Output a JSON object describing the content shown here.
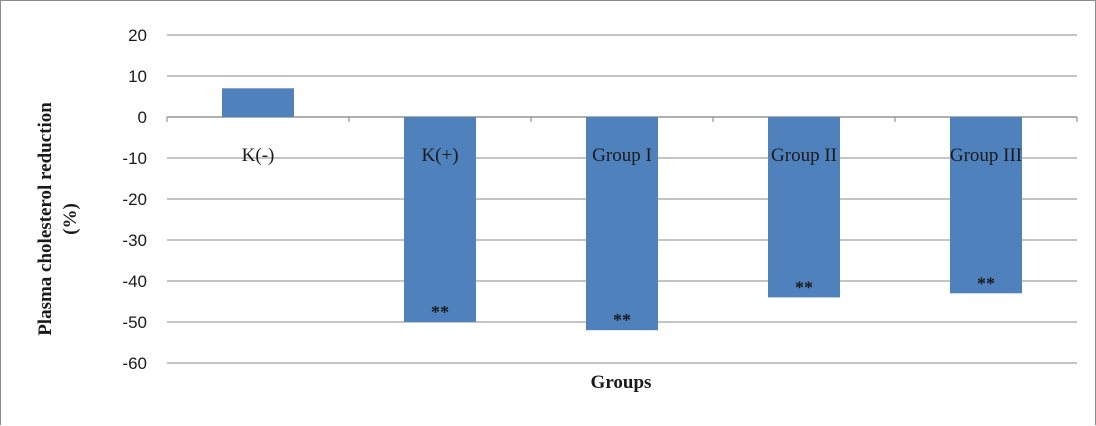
{
  "chart_data": {
    "type": "bar",
    "categories": [
      "K(-)",
      "K(+)",
      "Group I",
      "Group II",
      "Group III"
    ],
    "values": [
      7,
      -50,
      -52,
      -44,
      -43
    ],
    "annotations": [
      "",
      "**",
      "**",
      "**",
      "**"
    ],
    "ylim": [
      -60,
      20
    ],
    "yticks": [
      20,
      10,
      0,
      -10,
      -20,
      -30,
      -40,
      -50,
      -60
    ],
    "ytick_labels": [
      "20",
      "10",
      "0",
      "-10",
      "-20",
      "-30",
      "-40",
      "-50",
      "-60"
    ],
    "ylabel_line1": "Plasma cholesterol reduction",
    "ylabel_line2": "(%)",
    "xlabel": "Groups",
    "grid": true,
    "colors": {
      "bar": "#4f81bd",
      "grid": "#8a8a8a",
      "axis": "#7f7f7f"
    }
  }
}
